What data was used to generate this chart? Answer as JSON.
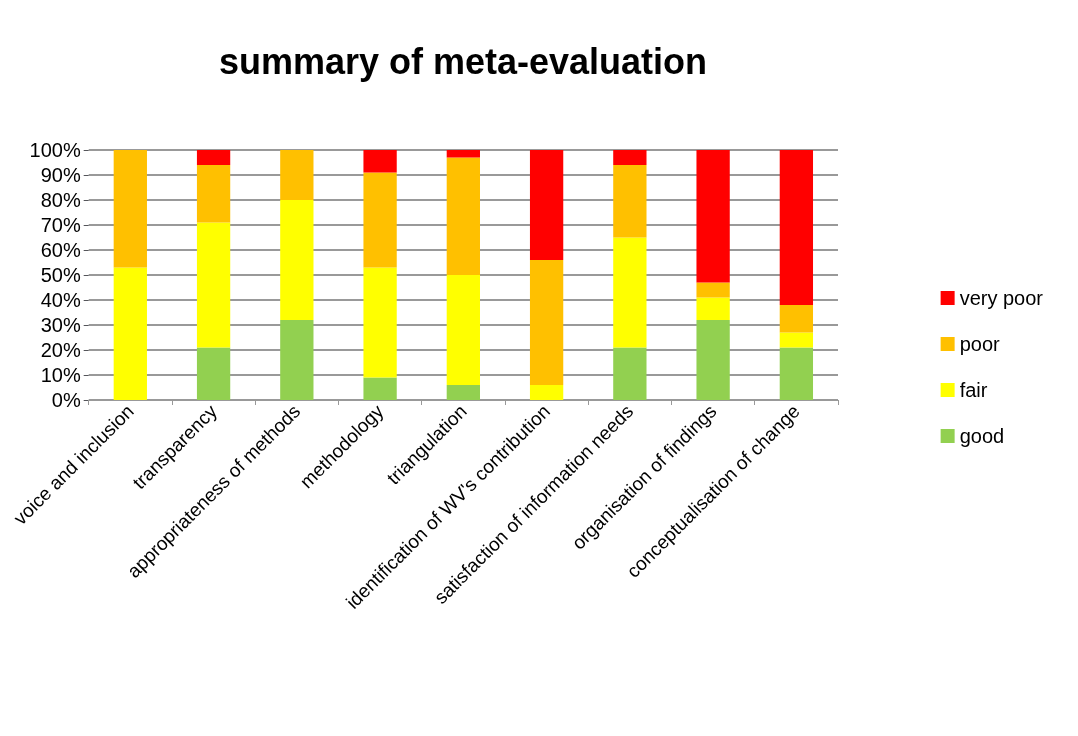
{
  "chart_data": {
    "type": "bar",
    "title": "summary of meta-evaluation",
    "stacked": true,
    "categories": [
      "voice and inclusion",
      "transparency",
      "appropriateness of methods",
      "methodology",
      "triangulation",
      "identification of WV's contribution",
      "satisfaction of information needs",
      "organisation of findings",
      "conceptualisation of change"
    ],
    "series": [
      {
        "name": "good",
        "color": "#92d050",
        "values": [
          0,
          21,
          32,
          9,
          6,
          0,
          21,
          32,
          21
        ]
      },
      {
        "name": "fair",
        "color": "#ffff00",
        "values": [
          53,
          50,
          48,
          44,
          44,
          6,
          44,
          9,
          6
        ]
      },
      {
        "name": "poor",
        "color": "#ffc000",
        "values": [
          47,
          23,
          20,
          38,
          47,
          50,
          29,
          6,
          11
        ]
      },
      {
        "name": "very poor",
        "color": "#ff0000",
        "values": [
          0,
          6,
          0,
          9,
          3,
          44,
          6,
          53,
          62
        ]
      }
    ],
    "ylim": [
      0,
      100
    ],
    "yticks": [
      {
        "value": 0,
        "label": "0%"
      },
      {
        "value": 10,
        "label": "10%"
      },
      {
        "value": 20,
        "label": "20%"
      },
      {
        "value": 30,
        "label": "30%"
      },
      {
        "value": 40,
        "label": "40%"
      },
      {
        "value": 50,
        "label": "50%"
      },
      {
        "value": 60,
        "label": "60%"
      },
      {
        "value": 70,
        "label": "70%"
      },
      {
        "value": 80,
        "label": "80%"
      },
      {
        "value": 90,
        "label": "90%"
      },
      {
        "value": 100,
        "label": "100%"
      }
    ],
    "grid": "y",
    "legend": "right"
  }
}
